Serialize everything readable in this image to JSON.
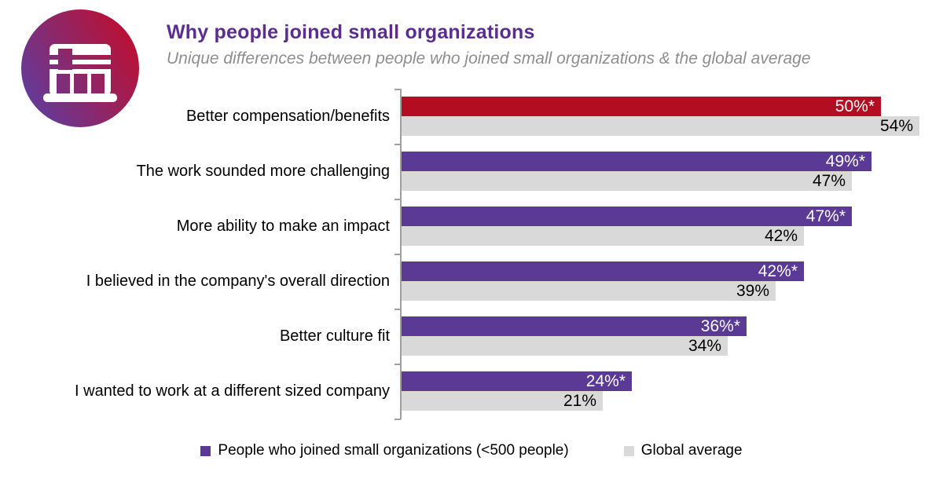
{
  "header": {
    "title": "Why people joined small organizations",
    "subtitle": "Unique differences between people who joined small organizations & the global average"
  },
  "icon": {
    "name": "storefront-icon",
    "gradient_start": "#5f3d9e",
    "gradient_end": "#c00e2e"
  },
  "chart_data": {
    "type": "bar",
    "orientation": "horizontal",
    "title": "Why people joined small organizations",
    "subtitle": "Unique differences between people who joined small organizations & the global average",
    "categories": [
      "Better compensation/benefits",
      "The work sounded more challenging",
      "More ability to make an impact",
      "I believed in the company's overall direction",
      "Better culture fit",
      "I wanted to work at a different sized company"
    ],
    "series": [
      {
        "name": "People who joined small organizations (<500 people)",
        "values": [
          50,
          49,
          47,
          42,
          36,
          24
        ],
        "data_labels": [
          "50%*",
          "49%*",
          "47%*",
          "42%*",
          "36%*",
          "24%*"
        ],
        "bar_colors": [
          "#b20d20",
          "#5a3a94",
          "#5a3a94",
          "#5a3a94",
          "#5a3a94",
          "#5a3a94"
        ],
        "label_color": "#ffffff"
      },
      {
        "name": "Global average",
        "values": [
          54,
          47,
          42,
          39,
          34,
          21
        ],
        "data_labels": [
          "54%",
          "47%",
          "42%",
          "39%",
          "34%",
          "21%"
        ],
        "bar_colors": [
          "#d9d9d9",
          "#d9d9d9",
          "#d9d9d9",
          "#d9d9d9",
          "#d9d9d9",
          "#d9d9d9"
        ],
        "label_color": "#000000"
      }
    ],
    "xlim": [
      0,
      56.5
    ],
    "grid": false,
    "axis_color": "#a0a0a0",
    "legend_position": "bottom",
    "significance_marker": "*"
  },
  "legend": {
    "items": [
      {
        "label": "People who joined small organizations (<500 people)",
        "color": "#5a3a94"
      },
      {
        "label": "Global average",
        "color": "#d9d9d9"
      }
    ]
  },
  "colors": {
    "title": "#5b2d90",
    "subtitle": "#8e8e8e",
    "highlight_red": "#b20d20",
    "brand_purple": "#5a3a94",
    "neutral_gray": "#d9d9d9",
    "background": "#ffffff"
  }
}
